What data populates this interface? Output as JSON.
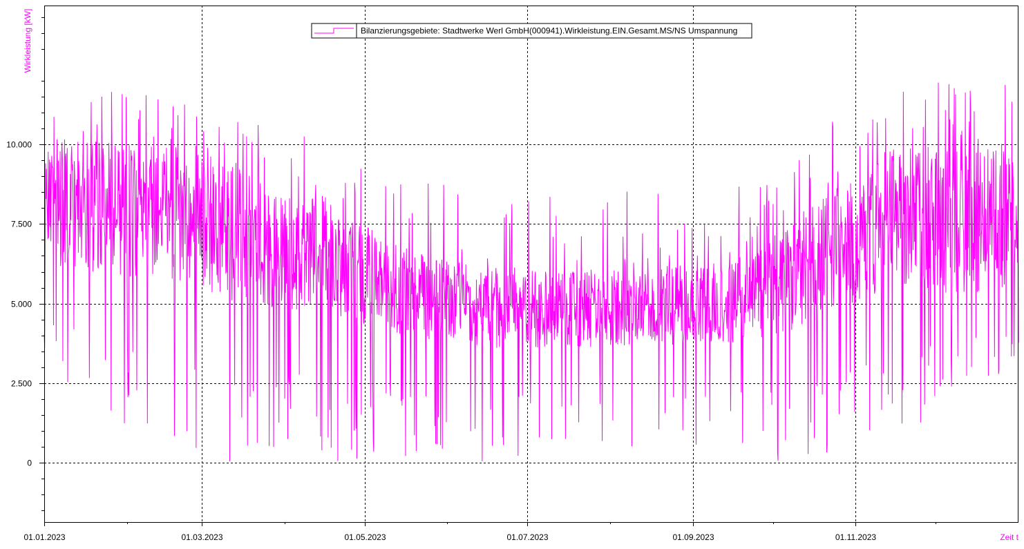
{
  "chart_data": {
    "type": "line",
    "ylabel": "Wirkleistung [kW]",
    "xlabel": "Zeit t",
    "x_range": [
      "2023-01-01",
      "2024-01-01"
    ],
    "y_range": [
      -1875,
      14375
    ],
    "y_ticks": [
      {
        "value": 0,
        "label": "0"
      },
      {
        "value": 2500,
        "label": "2.500"
      },
      {
        "value": 5000,
        "label": "5.000"
      },
      {
        "value": 7500,
        "label": "7.500"
      },
      {
        "value": 10000,
        "label": "10.000"
      }
    ],
    "x_ticks": [
      {
        "date": "2023-01-01",
        "label": "01.01.2023"
      },
      {
        "date": "2023-03-01",
        "label": "01.03.2023"
      },
      {
        "date": "2023-05-01",
        "label": "01.05.2023"
      },
      {
        "date": "2023-07-01",
        "label": "01.07.2023"
      },
      {
        "date": "2023-09-01",
        "label": "01.09.2023"
      },
      {
        "date": "2023-11-01",
        "label": "01.11.2023"
      }
    ],
    "grid": true,
    "legend_position": "top-center",
    "series": [
      {
        "name": "Bilanzierungsgebiete: Stadtwerke Werl GmbH(000941).Wirkleistung.EIN.Gesamt.MS/NS Umspannung",
        "color": "#ff00ff",
        "monthly_profile": [
          {
            "month": "2023-01",
            "max": 11900,
            "upper": 10200,
            "lower": 6000,
            "min": 2300
          },
          {
            "month": "2023-02",
            "max": 11600,
            "upper": 9800,
            "lower": 5700,
            "min": 0
          },
          {
            "month": "2023-03",
            "max": 11300,
            "upper": 9200,
            "lower": 5000,
            "min": 0
          },
          {
            "month": "2023-04",
            "max": 10100,
            "upper": 8300,
            "lower": 4700,
            "min": 0
          },
          {
            "month": "2023-05",
            "max": 8900,
            "upper": 6800,
            "lower": 4000,
            "min": 0
          },
          {
            "month": "2023-06",
            "max": 8600,
            "upper": 6100,
            "lower": 3600,
            "min": 0
          },
          {
            "month": "2023-07",
            "max": 8600,
            "upper": 6000,
            "lower": 3600,
            "min": 0
          },
          {
            "month": "2023-08",
            "max": 8600,
            "upper": 6200,
            "lower": 3700,
            "min": 0
          },
          {
            "month": "2023-09",
            "max": 8600,
            "upper": 6300,
            "lower": 3700,
            "min": 0
          },
          {
            "month": "2023-10",
            "max": 10300,
            "upper": 8200,
            "lower": 4300,
            "min": 0
          },
          {
            "month": "2023-11",
            "max": 12400,
            "upper": 10000,
            "lower": 5400,
            "min": 400
          },
          {
            "month": "2023-12",
            "max": 12300,
            "upper": 10000,
            "lower": 5300,
            "min": 2500
          }
        ]
      }
    ]
  }
}
